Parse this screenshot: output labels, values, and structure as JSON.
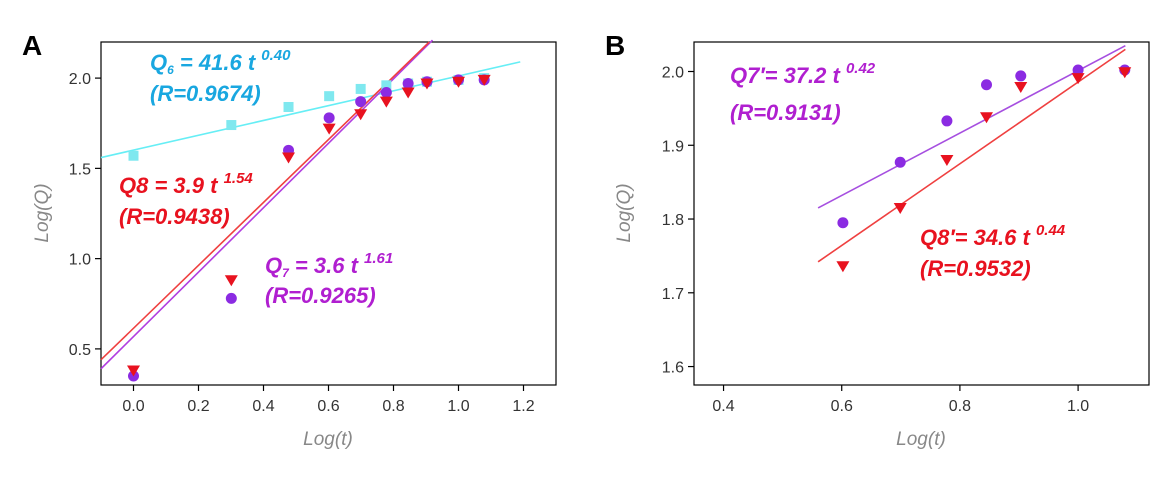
{
  "chart_data": [
    {
      "type": "scatter",
      "panel": "A",
      "xlabel": "Log(t)",
      "ylabel": "Log(Q)",
      "xlim": [
        -0.1,
        1.3
      ],
      "ylim": [
        0.3,
        2.2
      ],
      "xticks": [
        "0.0",
        "0.2",
        "0.4",
        "0.6",
        "0.8",
        "1.0",
        "1.2"
      ],
      "yticks": [
        "0.5",
        "1.0",
        "1.5",
        "2.0"
      ],
      "series": [
        {
          "name": "Q6",
          "marker": "square",
          "color": "#7fe8ef",
          "x": [
            0.0,
            0.301,
            0.477,
            0.602,
            0.699,
            0.778,
            0.845,
            0.903,
            1.0,
            1.079
          ],
          "y": [
            1.57,
            1.74,
            1.84,
            1.9,
            1.94,
            1.96,
            1.97,
            1.98,
            1.99,
            2.0
          ]
        },
        {
          "name": "Q7",
          "marker": "circle",
          "color": "#8b2be2",
          "x": [
            0.0,
            0.301,
            0.477,
            0.602,
            0.699,
            0.778,
            0.845,
            0.903,
            1.0,
            1.079
          ],
          "y": [
            0.35,
            0.78,
            1.6,
            1.78,
            1.87,
            1.92,
            1.97,
            1.98,
            1.99,
            1.99
          ]
        },
        {
          "name": "Q8",
          "marker": "triangle-down",
          "color": "#e8121f",
          "x": [
            0.0,
            0.301,
            0.477,
            0.602,
            0.699,
            0.778,
            0.845,
            0.903,
            1.0,
            1.079
          ],
          "y": [
            0.38,
            0.88,
            1.56,
            1.72,
            1.8,
            1.87,
            1.92,
            1.97,
            1.98,
            1.99
          ]
        }
      ],
      "fits": [
        {
          "name": "Q6 fit",
          "color": "#66eef5",
          "x": [
            -0.1,
            1.19
          ],
          "y": [
            1.56,
            2.09
          ]
        },
        {
          "name": "Q7 fit",
          "color": "#b13ee0",
          "x": [
            -0.1,
            0.92
          ],
          "y": [
            0.39,
            2.21
          ]
        },
        {
          "name": "Q8 fit",
          "color": "#ef4040",
          "x": [
            -0.1,
            0.91
          ],
          "y": [
            0.44,
            2.2
          ]
        }
      ],
      "annotations": [
        {
          "prefix": "Q",
          "sub": "6",
          "mid": " = 41.6 t ",
          "sup": "0.40",
          "r": "(R=0.9674)",
          "color": "#19a7e0"
        },
        {
          "prefix": "Q8 = 3.9 t ",
          "sub": "",
          "mid": "",
          "sup": "1.54",
          "r": "(R=0.9438)",
          "color": "#e8121f"
        },
        {
          "prefix": "Q",
          "sub": "7",
          "mid": " = 3.6 t ",
          "sup": "1.61",
          "r": "(R=0.9265)",
          "color": "#b01fd0"
        }
      ]
    },
    {
      "type": "scatter",
      "panel": "B",
      "xlabel": "Log(t)",
      "ylabel": "Log(Q)",
      "xlim": [
        0.35,
        1.12
      ],
      "ylim": [
        1.575,
        2.04
      ],
      "xticks": [
        "0.4",
        "0.6",
        "0.8",
        "1.0"
      ],
      "yticks": [
        "1.6",
        "1.7",
        "1.8",
        "1.9",
        "2.0"
      ],
      "series": [
        {
          "name": "Q7'",
          "marker": "circle",
          "color": "#8b2be2",
          "x": [
            0.602,
            0.699,
            0.778,
            0.845,
            0.903,
            1.0,
            1.079
          ],
          "y": [
            1.795,
            1.877,
            1.933,
            1.982,
            1.994,
            2.002,
            2.002
          ]
        },
        {
          "name": "Q8'",
          "marker": "triangle-down",
          "color": "#e8121f",
          "x": [
            0.602,
            0.699,
            0.778,
            0.845,
            0.903,
            1.0,
            1.079
          ],
          "y": [
            1.736,
            1.815,
            1.88,
            1.938,
            1.979,
            1.991,
            1.999
          ]
        }
      ],
      "fits": [
        {
          "name": "Q7' fit",
          "color": "#a64fe0",
          "x": [
            0.56,
            1.08
          ],
          "y": [
            1.815,
            2.035
          ]
        },
        {
          "name": "Q8' fit",
          "color": "#ef4040",
          "x": [
            0.56,
            1.08
          ],
          "y": [
            1.742,
            2.03
          ]
        }
      ],
      "annotations": [
        {
          "prefix": "Q7′= 37.2 t ",
          "sub": "",
          "mid": "",
          "sup": "0.42",
          "r": "(R=0.9131)",
          "color": "#b01fd0"
        },
        {
          "prefix": "Q8′= 34.6 t ",
          "sub": "",
          "mid": "",
          "sup": "0.44",
          "r": "(R=0.9532)",
          "color": "#e8121f"
        }
      ]
    }
  ]
}
